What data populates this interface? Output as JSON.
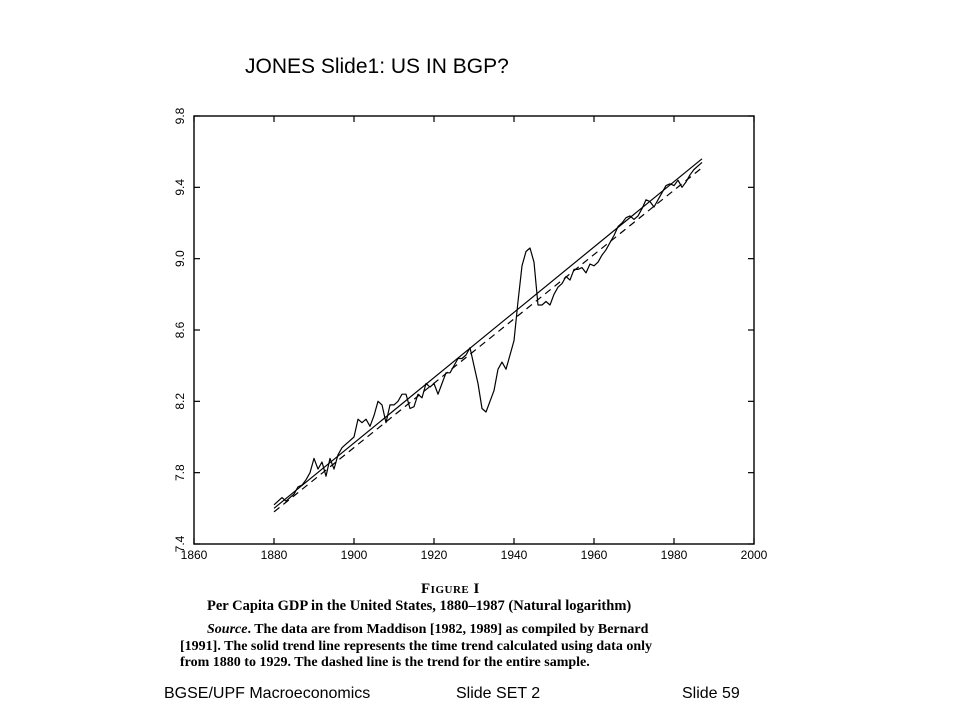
{
  "slide": {
    "title": "JONES Slide1: US IN BGP?"
  },
  "figure": {
    "label": "Figure I",
    "title": "Per Capita GDP in the United States, 1880–1987 (Natural logarithm)",
    "source_word": "Source",
    "source_line1": ". The data are from Maddison [1982, 1989] as compiled by Bernard",
    "source_line2": "[1991]. The solid trend line represents the time trend calculated using data only",
    "source_line3": "from 1880 to 1929. The dashed line is the trend for the entire sample."
  },
  "footer": {
    "course": "BGSE/UPF Macroeconomics",
    "set": "Slide SET 2",
    "slide_number": "Slide 59"
  },
  "chart_data": {
    "type": "line",
    "title": "",
    "xlabel": "",
    "ylabel": "",
    "xlim": [
      1860,
      2000
    ],
    "ylim": [
      7.4,
      9.8
    ],
    "x_ticks": [
      "1860",
      "1880",
      "1900",
      "1920",
      "1940",
      "1960",
      "1980",
      "2000"
    ],
    "y_ticks": [
      "7.4",
      "7.8",
      "8.2",
      "8.6",
      "9.0",
      "9.4",
      "9.8"
    ],
    "grid": false,
    "legend": "none",
    "colors": {
      "line": "#000000",
      "background": "#ffffff"
    },
    "series": [
      {
        "style": "solid",
        "x": [
          1880,
          1881,
          1882,
          1883,
          1884,
          1885,
          1886,
          1887,
          1888,
          1889,
          1890,
          1891,
          1892,
          1893,
          1894,
          1895,
          1896,
          1897,
          1898,
          1899,
          1900,
          1901,
          1902,
          1903,
          1904,
          1905,
          1906,
          1907,
          1908,
          1909,
          1910,
          1911,
          1912,
          1913,
          1914,
          1915,
          1916,
          1917,
          1918,
          1919,
          1920,
          1921,
          1922,
          1923,
          1924,
          1925,
          1926,
          1927,
          1928,
          1929,
          1930,
          1931,
          1932,
          1933,
          1934,
          1935,
          1936,
          1937,
          1938,
          1939,
          1940,
          1941,
          1942,
          1943,
          1944,
          1945,
          1946,
          1947,
          1948,
          1949,
          1950,
          1951,
          1952,
          1953,
          1954,
          1955,
          1956,
          1957,
          1958,
          1959,
          1960,
          1961,
          1962,
          1963,
          1964,
          1965,
          1966,
          1967,
          1968,
          1969,
          1970,
          1971,
          1972,
          1973,
          1974,
          1975,
          1976,
          1977,
          1978,
          1979,
          1980,
          1981,
          1982,
          1983,
          1984,
          1985,
          1986,
          1987
        ],
        "values": [
          7.62,
          7.64,
          7.66,
          7.64,
          7.66,
          7.68,
          7.72,
          7.73,
          7.76,
          7.8,
          7.88,
          7.82,
          7.86,
          7.78,
          7.88,
          7.82,
          7.9,
          7.94,
          7.96,
          7.98,
          8.0,
          8.1,
          8.08,
          8.1,
          8.06,
          8.12,
          8.2,
          8.18,
          8.08,
          8.18,
          8.18,
          8.2,
          8.24,
          8.24,
          8.16,
          8.17,
          8.24,
          8.22,
          8.3,
          8.28,
          8.3,
          8.24,
          8.3,
          8.36,
          8.36,
          8.4,
          8.44,
          8.44,
          8.46,
          8.5,
          8.4,
          8.3,
          8.16,
          8.14,
          8.2,
          8.26,
          8.38,
          8.42,
          8.38,
          8.46,
          8.54,
          8.76,
          8.96,
          9.04,
          9.06,
          8.98,
          8.74,
          8.74,
          8.76,
          8.74,
          8.8,
          8.84,
          8.86,
          8.9,
          8.88,
          8.94,
          8.94,
          8.95,
          8.92,
          8.97,
          8.96,
          8.98,
          9.02,
          9.05,
          9.09,
          9.13,
          9.18,
          9.2,
          9.23,
          9.24,
          9.22,
          9.24,
          9.28,
          9.33,
          9.32,
          9.29,
          9.33,
          9.37,
          9.41,
          9.42,
          9.41,
          9.44,
          9.4,
          9.43,
          9.47,
          9.5,
          9.52,
          9.54
        ]
      },
      {
        "style": "solid",
        "x": [
          1880,
          1987
        ],
        "values": [
          7.6,
          9.56
        ]
      },
      {
        "style": "dashed",
        "x": [
          1880,
          1987
        ],
        "values": [
          7.58,
          9.51
        ]
      }
    ]
  }
}
